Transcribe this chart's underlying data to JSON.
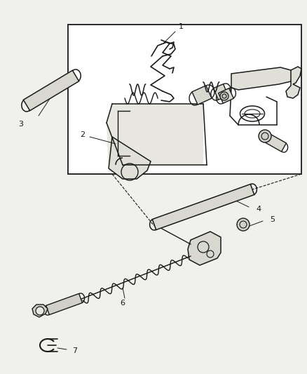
{
  "background_color": "#f0f0ec",
  "line_color": "#1a1a1a",
  "box_fill": "#ffffff",
  "figsize": [
    4.39,
    5.33
  ],
  "dpi": 100
}
